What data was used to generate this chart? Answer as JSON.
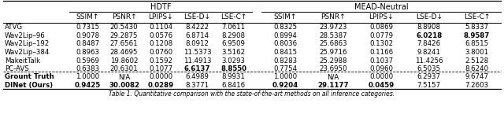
{
  "title_hdtf": "HDTF",
  "title_mead": "MEAD-Neutral",
  "col_headers_hdtf": [
    "SSIM↑",
    "PSNR↑",
    "LPIPS↓",
    "LSE-D↓",
    "LSE-C↑"
  ],
  "col_headers_mead": [
    "SSIM↑",
    "PSNR↑",
    "LPIPS↓",
    "LSE-D↓",
    "LSE-C↑"
  ],
  "row_labels": [
    "ATVG",
    "Wav2Lip–96",
    "Wav2Lip–192",
    "Wav2Lip–384",
    "MakeitTalk",
    "PC-AVS",
    "Grount Truth",
    "DINet (Ours)"
  ],
  "hdtf_data": [
    [
      "0.7315",
      "20.5430",
      "0.1104",
      "8.4222",
      "7.0611"
    ],
    [
      "0.9078",
      "29.2875",
      "0.0576",
      "6.8714",
      "8.2908"
    ],
    [
      "0.8487",
      "27.6561",
      "0.1208",
      "8.0912",
      "6.9509"
    ],
    [
      "0.8963",
      "28.4695",
      "0.0760",
      "11.5373",
      "3.5162"
    ],
    [
      "0.5969",
      "19.8602",
      "0.1592",
      "11.4913",
      "3.0293"
    ],
    [
      "0.6383",
      "20.6301",
      "0.1077",
      "6.6137",
      "8.8550"
    ],
    [
      "1.0000",
      "N/A",
      "0.0000",
      "6.4989",
      "8.9931"
    ],
    [
      "0.9425",
      "30.0082",
      "0.0289",
      "8.3771",
      "6.8416"
    ]
  ],
  "mead_data": [
    [
      "0.8325",
      "23.9723",
      "0.0869",
      "8.8908",
      "5.8337"
    ],
    [
      "0.8994",
      "28.5387",
      "0.0779",
      "6.0218",
      "8.9587"
    ],
    [
      "0.8036",
      "25.6863",
      "0.1302",
      "7.8426",
      "6.8515"
    ],
    [
      "0.8415",
      "25.9716",
      "0.1166",
      "9.8241",
      "3.8001"
    ],
    [
      "0.8283",
      "25.2988",
      "0.1037",
      "11.4256",
      "2.5128"
    ],
    [
      "0.7754",
      "23.6950",
      "0.0960",
      "6.5035",
      "8.6240"
    ],
    [
      "1.0000",
      "N/A",
      "0.0000",
      "6.2937",
      "9.6747"
    ],
    [
      "0.9204",
      "29.1177",
      "0.0459",
      "7.5157",
      "7.2603"
    ]
  ],
  "bold_hdtf": [
    [
      false,
      false,
      false,
      false,
      false
    ],
    [
      false,
      false,
      false,
      false,
      false
    ],
    [
      false,
      false,
      false,
      false,
      false
    ],
    [
      false,
      false,
      false,
      false,
      false
    ],
    [
      false,
      false,
      false,
      false,
      false
    ],
    [
      false,
      false,
      false,
      true,
      true
    ],
    [
      false,
      false,
      false,
      false,
      false
    ],
    [
      true,
      true,
      true,
      false,
      false
    ]
  ],
  "bold_mead": [
    [
      false,
      false,
      false,
      false,
      false
    ],
    [
      false,
      false,
      false,
      true,
      true
    ],
    [
      false,
      false,
      false,
      false,
      false
    ],
    [
      false,
      false,
      false,
      false,
      false
    ],
    [
      false,
      false,
      false,
      false,
      false
    ],
    [
      false,
      false,
      false,
      false,
      false
    ],
    [
      false,
      false,
      false,
      false,
      false
    ],
    [
      true,
      true,
      true,
      false,
      false
    ]
  ],
  "background_color": "#ffffff",
  "header_line_color": "#000000",
  "text_color": "#000000",
  "caption": "Table 1. Quantitative comparison with the state-of-the-art methods on all inference categories."
}
